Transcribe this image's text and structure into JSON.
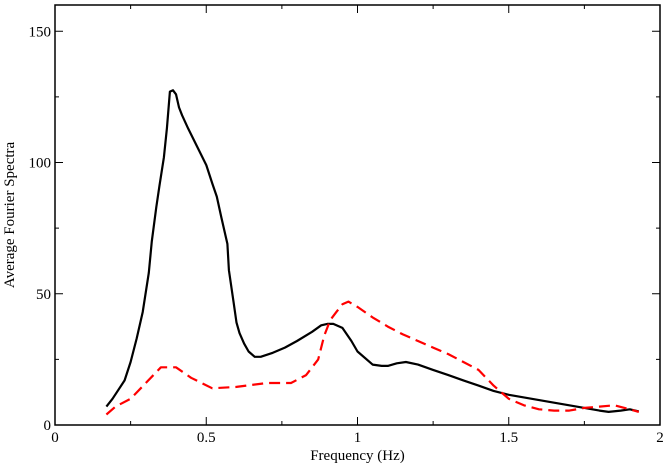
{
  "chart_data": {
    "type": "line",
    "title": "",
    "xlabel": "Frequency (Hz)",
    "ylabel": "Average Fourier Spectra",
    "xlim": [
      0,
      2
    ],
    "ylim": [
      0,
      160
    ],
    "x_ticks": [
      0,
      0.5,
      1,
      1.5,
      2
    ],
    "x_tick_labels": [
      "0",
      "0.5",
      "1",
      "1.5",
      "2"
    ],
    "y_ticks": [
      0,
      50,
      100,
      150
    ],
    "y_tick_labels": [
      "0",
      "50",
      "100",
      "150"
    ],
    "grid": false,
    "legend": "none",
    "series": [
      {
        "color": "#000000",
        "dash": "solid",
        "points": [
          [
            0.17,
            7
          ],
          [
            0.19,
            10
          ],
          [
            0.23,
            17
          ],
          [
            0.25,
            24
          ],
          [
            0.27,
            33
          ],
          [
            0.29,
            43
          ],
          [
            0.31,
            58
          ],
          [
            0.32,
            70
          ],
          [
            0.335,
            83
          ],
          [
            0.345,
            91
          ],
          [
            0.36,
            102
          ],
          [
            0.37,
            113
          ],
          [
            0.38,
            127
          ],
          [
            0.39,
            127.5
          ],
          [
            0.4,
            126
          ],
          [
            0.41,
            121
          ],
          [
            0.42,
            118
          ],
          [
            0.44,
            113
          ],
          [
            0.47,
            106
          ],
          [
            0.5,
            99
          ],
          [
            0.52,
            92
          ],
          [
            0.535,
            87
          ],
          [
            0.55,
            79
          ],
          [
            0.57,
            69
          ],
          [
            0.575,
            59
          ],
          [
            0.59,
            47
          ],
          [
            0.6,
            39
          ],
          [
            0.61,
            35
          ],
          [
            0.625,
            31
          ],
          [
            0.64,
            28
          ],
          [
            0.66,
            26
          ],
          [
            0.68,
            26
          ],
          [
            0.72,
            27.5
          ],
          [
            0.76,
            29.5
          ],
          [
            0.8,
            32
          ],
          [
            0.85,
            35.5
          ],
          [
            0.88,
            38
          ],
          [
            0.9,
            38.5
          ],
          [
            0.92,
            38.5
          ],
          [
            0.95,
            37
          ],
          [
            0.98,
            32
          ],
          [
            1.0,
            28
          ],
          [
            1.05,
            23
          ],
          [
            1.08,
            22.5
          ],
          [
            1.1,
            22.5
          ],
          [
            1.13,
            23.5
          ],
          [
            1.16,
            24
          ],
          [
            1.2,
            23
          ],
          [
            1.25,
            21
          ],
          [
            1.3,
            19
          ],
          [
            1.35,
            17
          ],
          [
            1.4,
            15
          ],
          [
            1.45,
            13
          ],
          [
            1.5,
            11.5
          ],
          [
            1.55,
            10.5
          ],
          [
            1.6,
            9.5
          ],
          [
            1.65,
            8.5
          ],
          [
            1.7,
            7.5
          ],
          [
            1.75,
            6.5
          ],
          [
            1.8,
            5.5
          ],
          [
            1.83,
            5
          ],
          [
            1.87,
            5.5
          ],
          [
            1.9,
            6
          ],
          [
            1.93,
            5.2
          ]
        ]
      },
      {
        "color": "#ff0000",
        "dash": "dashed",
        "points": [
          [
            0.17,
            4
          ],
          [
            0.2,
            7
          ],
          [
            0.25,
            10
          ],
          [
            0.3,
            16
          ],
          [
            0.35,
            22
          ],
          [
            0.4,
            22
          ],
          [
            0.45,
            18
          ],
          [
            0.52,
            14
          ],
          [
            0.6,
            14.5
          ],
          [
            0.7,
            16
          ],
          [
            0.78,
            16
          ],
          [
            0.83,
            19
          ],
          [
            0.87,
            25
          ],
          [
            0.89,
            34
          ],
          [
            0.91,
            40
          ],
          [
            0.93,
            43
          ],
          [
            0.95,
            46
          ],
          [
            0.97,
            47
          ],
          [
            1.0,
            45
          ],
          [
            1.05,
            41
          ],
          [
            1.1,
            37.5
          ],
          [
            1.15,
            34.5
          ],
          [
            1.2,
            32
          ],
          [
            1.25,
            29.5
          ],
          [
            1.3,
            27
          ],
          [
            1.35,
            24
          ],
          [
            1.4,
            21
          ],
          [
            1.45,
            15
          ],
          [
            1.5,
            10
          ],
          [
            1.55,
            7.5
          ],
          [
            1.6,
            6
          ],
          [
            1.65,
            5.5
          ],
          [
            1.7,
            5.5
          ],
          [
            1.75,
            6.5
          ],
          [
            1.8,
            7
          ],
          [
            1.85,
            7.5
          ],
          [
            1.9,
            6
          ],
          [
            1.93,
            5
          ]
        ]
      }
    ]
  }
}
